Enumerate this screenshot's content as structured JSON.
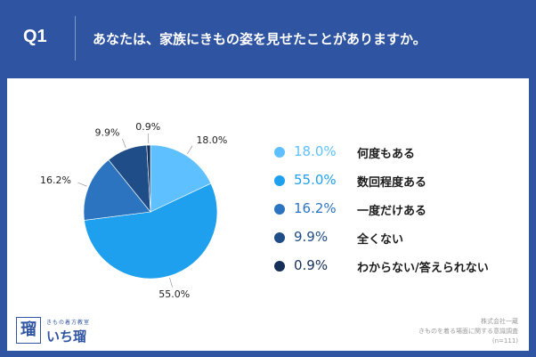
{
  "header": {
    "q_label": "Q1",
    "question": "あなたは、家族にきもの姿を見せたことがありますか。"
  },
  "chart_data": {
    "type": "pie",
    "slices": [
      {
        "label": "何度もある",
        "value": 18.0,
        "display": "18.0%",
        "color": "#5ec0ff"
      },
      {
        "label": "数回程度ある",
        "value": 55.0,
        "display": "55.0%",
        "color": "#1fa0ee"
      },
      {
        "label": "一度だけある",
        "value": 16.2,
        "display": "16.2%",
        "color": "#2d74c0"
      },
      {
        "label": "全くない",
        "value": 9.9,
        "display": "9.9%",
        "color": "#1e4d87"
      },
      {
        "label": "わからない/答えられない",
        "value": 0.9,
        "display": "0.9%",
        "color": "#162f57"
      }
    ],
    "start": "12 o'clock",
    "direction": "clockwise",
    "legend_position": "right"
  },
  "logo": {
    "mark": "瑠",
    "small": "きもの着方教室",
    "main": "いち瑠"
  },
  "source": {
    "line1": "株式会社一蔵",
    "line2": "きものを着る場面に関する意識調査",
    "line3": "(n=111)"
  }
}
